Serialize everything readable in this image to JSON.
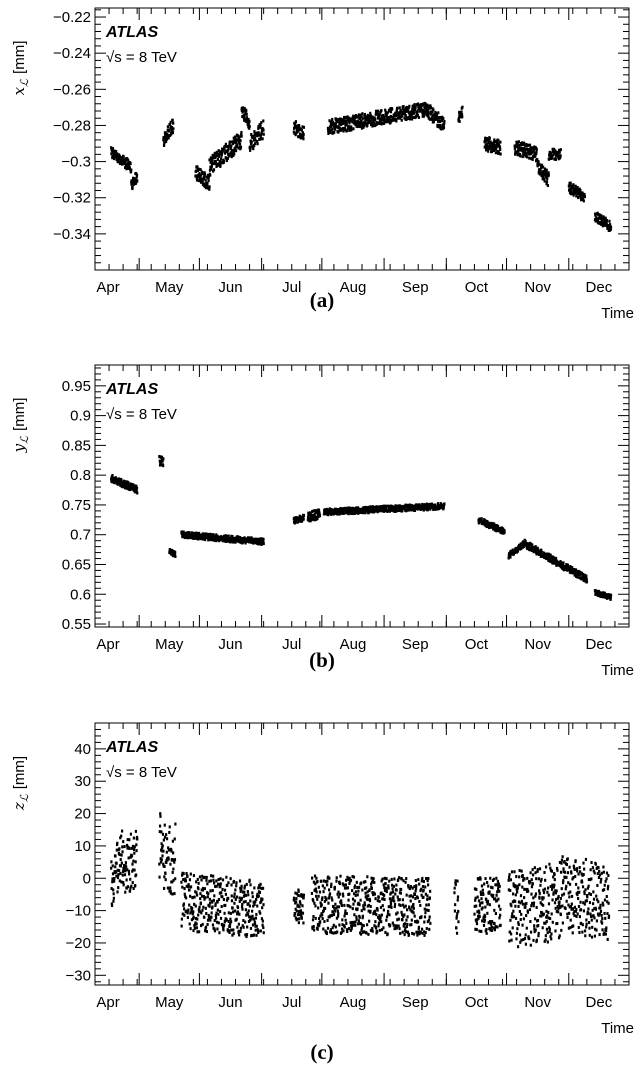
{
  "panels": [
    {
      "caption": "(a)",
      "atlas_label": "ATLAS",
      "energy_label": "√s = 8 TeV",
      "ylabel_symbol": "x",
      "ylabel_subscript": "ℒ",
      "ylabel_unit": "[mm]",
      "xlabel": "Time"
    },
    {
      "caption": "(b)",
      "atlas_label": "ATLAS",
      "energy_label": "√s = 8 TeV",
      "ylabel_symbol": "y",
      "ylabel_subscript": "ℒ",
      "ylabel_unit": "[mm]",
      "xlabel": "Time"
    },
    {
      "caption": "(c)",
      "atlas_label": "ATLAS",
      "energy_label": "√s = 8 TeV",
      "ylabel_symbol": "z",
      "ylabel_subscript": "ℒ",
      "ylabel_unit": "[mm]",
      "xlabel": "Time"
    }
  ],
  "chart_data": [
    {
      "type": "scatter",
      "xlabel": "Time",
      "ylabel": "x_ℒ [mm]",
      "x_tick_labels": [
        "Apr",
        "May",
        "Jun",
        "Jul",
        "Aug",
        "Sep",
        "Oct",
        "Nov",
        "Dec"
      ],
      "xlim": [
        "2012-03-10",
        "2012-12-01"
      ],
      "ylim": [
        -0.36,
        -0.215
      ],
      "y_ticks": [
        -0.34,
        -0.32,
        -0.3,
        -0.28,
        -0.26,
        -0.24,
        -0.22
      ],
      "y_tick_labels": [
        "−0.34",
        "−0.32",
        "−0.3",
        "−0.28",
        "−0.26",
        "−0.24",
        "−0.22"
      ],
      "annotations": [
        "ATLAS",
        "√s = 8 TeV"
      ],
      "segments": [
        {
          "start": "2012-03-18",
          "end": "2012-03-28",
          "y": [
            -0.295,
            -0.303
          ],
          "spread": 0.003
        },
        {
          "start": "2012-03-28",
          "end": "2012-03-31",
          "y": [
            -0.313,
            -0.308
          ],
          "spread": 0.003
        },
        {
          "start": "2012-04-13",
          "end": "2012-04-18",
          "y": [
            -0.288,
            -0.28
          ],
          "spread": 0.004
        },
        {
          "start": "2012-04-29",
          "end": "2012-05-06",
          "y": [
            -0.306,
            -0.312
          ],
          "spread": 0.004
        },
        {
          "start": "2012-05-06",
          "end": "2012-05-22",
          "y": [
            -0.303,
            -0.288
          ],
          "spread": 0.005
        },
        {
          "start": "2012-05-22",
          "end": "2012-05-26",
          "y": [
            -0.272,
            -0.278
          ],
          "spread": 0.004
        },
        {
          "start": "2012-05-26",
          "end": "2012-06-02",
          "y": [
            -0.29,
            -0.282
          ],
          "spread": 0.005
        },
        {
          "start": "2012-06-17",
          "end": "2012-06-22",
          "y": [
            -0.281,
            -0.284
          ],
          "spread": 0.004
        },
        {
          "start": "2012-07-04",
          "end": "2012-08-22",
          "y": [
            -0.281,
            -0.271
          ],
          "spread": 0.004
        },
        {
          "start": "2012-08-22",
          "end": "2012-08-31",
          "y": [
            -0.271,
            -0.28
          ],
          "spread": 0.004
        },
        {
          "start": "2012-09-07",
          "end": "2012-09-09",
          "y": [
            -0.276,
            -0.272
          ],
          "spread": 0.003
        },
        {
          "start": "2012-09-20",
          "end": "2012-09-28",
          "y": [
            -0.29,
            -0.292
          ],
          "spread": 0.004
        },
        {
          "start": "2012-10-05",
          "end": "2012-10-16",
          "y": [
            -0.292,
            -0.296
          ],
          "spread": 0.004
        },
        {
          "start": "2012-10-16",
          "end": "2012-10-22",
          "y": [
            -0.302,
            -0.31
          ],
          "spread": 0.004
        },
        {
          "start": "2012-10-22",
          "end": "2012-10-28",
          "y": [
            -0.296,
            -0.296
          ],
          "spread": 0.003
        },
        {
          "start": "2012-11-01",
          "end": "2012-11-09",
          "y": [
            -0.314,
            -0.32
          ],
          "spread": 0.003
        },
        {
          "start": "2012-11-14",
          "end": "2012-11-22",
          "y": [
            -0.33,
            -0.336
          ],
          "spread": 0.003
        }
      ]
    },
    {
      "type": "scatter",
      "xlabel": "Time",
      "ylabel": "y_ℒ [mm]",
      "x_tick_labels": [
        "Apr",
        "May",
        "Jun",
        "Jul",
        "Aug",
        "Sep",
        "Oct",
        "Nov",
        "Dec"
      ],
      "xlim": [
        "2012-03-10",
        "2012-12-01"
      ],
      "ylim": [
        0.545,
        0.985
      ],
      "y_ticks": [
        0.55,
        0.6,
        0.65,
        0.7,
        0.75,
        0.8,
        0.85,
        0.9,
        0.95
      ],
      "y_tick_labels": [
        "0.55",
        "0.6",
        "0.65",
        "0.7",
        "0.75",
        "0.8",
        "0.85",
        "0.9",
        "0.95"
      ],
      "annotations": [
        "ATLAS",
        "√s = 8 TeV"
      ],
      "segments": [
        {
          "start": "2012-03-18",
          "end": "2012-03-31",
          "y": [
            0.795,
            0.775
          ],
          "spread": 0.006
        },
        {
          "start": "2012-04-11",
          "end": "2012-04-13",
          "y": [
            0.825,
            0.822
          ],
          "spread": 0.008
        },
        {
          "start": "2012-04-16",
          "end": "2012-04-19",
          "y": [
            0.672,
            0.667
          ],
          "spread": 0.004
        },
        {
          "start": "2012-04-22",
          "end": "2012-06-02",
          "y": [
            0.7,
            0.688
          ],
          "spread": 0.005
        },
        {
          "start": "2012-06-17",
          "end": "2012-06-22",
          "y": [
            0.724,
            0.728
          ],
          "spread": 0.005
        },
        {
          "start": "2012-06-24",
          "end": "2012-06-30",
          "y": [
            0.73,
            0.735
          ],
          "spread": 0.008
        },
        {
          "start": "2012-07-02",
          "end": "2012-08-31",
          "y": [
            0.738,
            0.748
          ],
          "spread": 0.005
        },
        {
          "start": "2012-09-17",
          "end": "2012-09-30",
          "y": [
            0.725,
            0.705
          ],
          "spread": 0.005
        },
        {
          "start": "2012-10-02",
          "end": "2012-10-10",
          "y": [
            0.665,
            0.685
          ],
          "spread": 0.005
        },
        {
          "start": "2012-10-10",
          "end": "2012-11-10",
          "y": [
            0.685,
            0.625
          ],
          "spread": 0.006
        },
        {
          "start": "2012-11-14",
          "end": "2012-11-22",
          "y": [
            0.603,
            0.595
          ],
          "spread": 0.004
        }
      ]
    },
    {
      "type": "scatter",
      "xlabel": "Time",
      "ylabel": "z_ℒ [mm]",
      "x_tick_labels": [
        "Apr",
        "May",
        "Jun",
        "Jul",
        "Aug",
        "Sep",
        "Oct",
        "Nov",
        "Dec"
      ],
      "xlim": [
        "2012-03-10",
        "2012-12-01"
      ],
      "ylim": [
        -33,
        48
      ],
      "y_ticks": [
        -30,
        -20,
        -10,
        0,
        10,
        20,
        30,
        40
      ],
      "y_tick_labels": [
        "−30",
        "−20",
        "−10",
        "0",
        "10",
        "20",
        "30",
        "40"
      ],
      "annotations": [
        "ATLAS",
        "√s = 8 TeV"
      ],
      "segments": [
        {
          "start": "2012-03-18",
          "end": "2012-03-24",
          "y": [
            -2,
            8
          ],
          "spread": 8
        },
        {
          "start": "2012-03-24",
          "end": "2012-03-31",
          "y": [
            4,
            6
          ],
          "spread": 9
        },
        {
          "start": "2012-04-11",
          "end": "2012-04-19",
          "y": [
            10,
            6
          ],
          "spread": 12
        },
        {
          "start": "2012-04-22",
          "end": "2012-06-02",
          "y": [
            -7,
            -10
          ],
          "spread": 9
        },
        {
          "start": "2012-06-17",
          "end": "2012-06-22",
          "y": [
            -8,
            -8
          ],
          "spread": 6
        },
        {
          "start": "2012-06-26",
          "end": "2012-08-24",
          "y": [
            -8,
            -9
          ],
          "spread": 9
        },
        {
          "start": "2012-09-05",
          "end": "2012-09-07",
          "y": [
            -10,
            -10
          ],
          "spread": 10
        },
        {
          "start": "2012-09-15",
          "end": "2012-09-28",
          "y": [
            -8,
            -9
          ],
          "spread": 9
        },
        {
          "start": "2012-10-02",
          "end": "2012-10-28",
          "y": [
            -10,
            -7
          ],
          "spread": 12
        },
        {
          "start": "2012-10-28",
          "end": "2012-11-21",
          "y": [
            -5,
            -7
          ],
          "spread": 12
        }
      ]
    }
  ]
}
